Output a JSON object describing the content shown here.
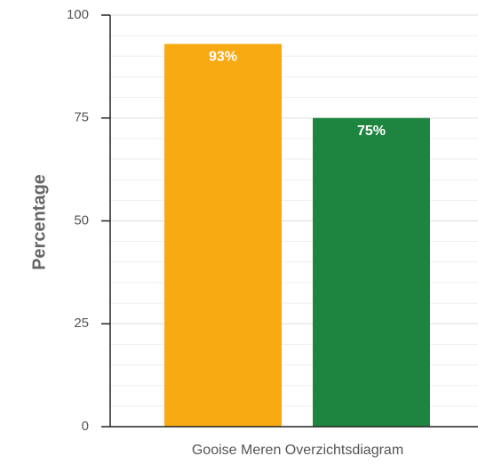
{
  "chart_data": {
    "type": "bar",
    "title": "",
    "xlabel": "Gooise Meren Overzichtsdiagram",
    "ylabel": "Percentage",
    "ylim": [
      0,
      100
    ],
    "yticks": [
      "0",
      "25",
      "50",
      "75",
      "100"
    ],
    "grid": true,
    "legend": "none",
    "bars": [
      {
        "value": 93,
        "label": "93%",
        "color": "#f8aa13"
      },
      {
        "value": 75,
        "label": "75%",
        "color": "#1e8540"
      }
    ]
  },
  "colors": {
    "axis": "#222222",
    "grid_major": "#dedede",
    "grid_minor": "#efefef"
  }
}
